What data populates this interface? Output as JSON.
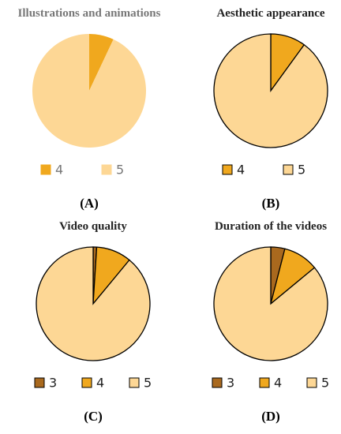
{
  "chart_data": [
    {
      "type": "pie",
      "title": "Illustrations and animations",
      "label": "(A)",
      "categories": [
        "4",
        "5"
      ],
      "values": [
        7,
        93
      ],
      "colors": [
        "#f0a81e",
        "#fdd795"
      ],
      "outline": false,
      "text_color": "#777777"
    },
    {
      "type": "pie",
      "title": "Aesthetic appearance",
      "label": "(B)",
      "categories": [
        "4",
        "5"
      ],
      "values": [
        10,
        90
      ],
      "colors": [
        "#f0a81e",
        "#fdd795"
      ],
      "outline": true,
      "text_color": "#222222"
    },
    {
      "type": "pie",
      "title": "Video quality",
      "label": "(C)",
      "categories": [
        "3",
        "4",
        "5"
      ],
      "values": [
        1,
        10,
        89
      ],
      "colors": [
        "#a9691e",
        "#f0a81e",
        "#fdd795"
      ],
      "outline": true,
      "text_color": "#222222"
    },
    {
      "type": "pie",
      "title": "Duration of the videos",
      "label": "(D)",
      "categories": [
        "3",
        "4",
        "5"
      ],
      "values": [
        4,
        10,
        86
      ],
      "colors": [
        "#a9691e",
        "#f0a81e",
        "#fdd795"
      ],
      "outline": true,
      "text_color": "#222222"
    }
  ]
}
